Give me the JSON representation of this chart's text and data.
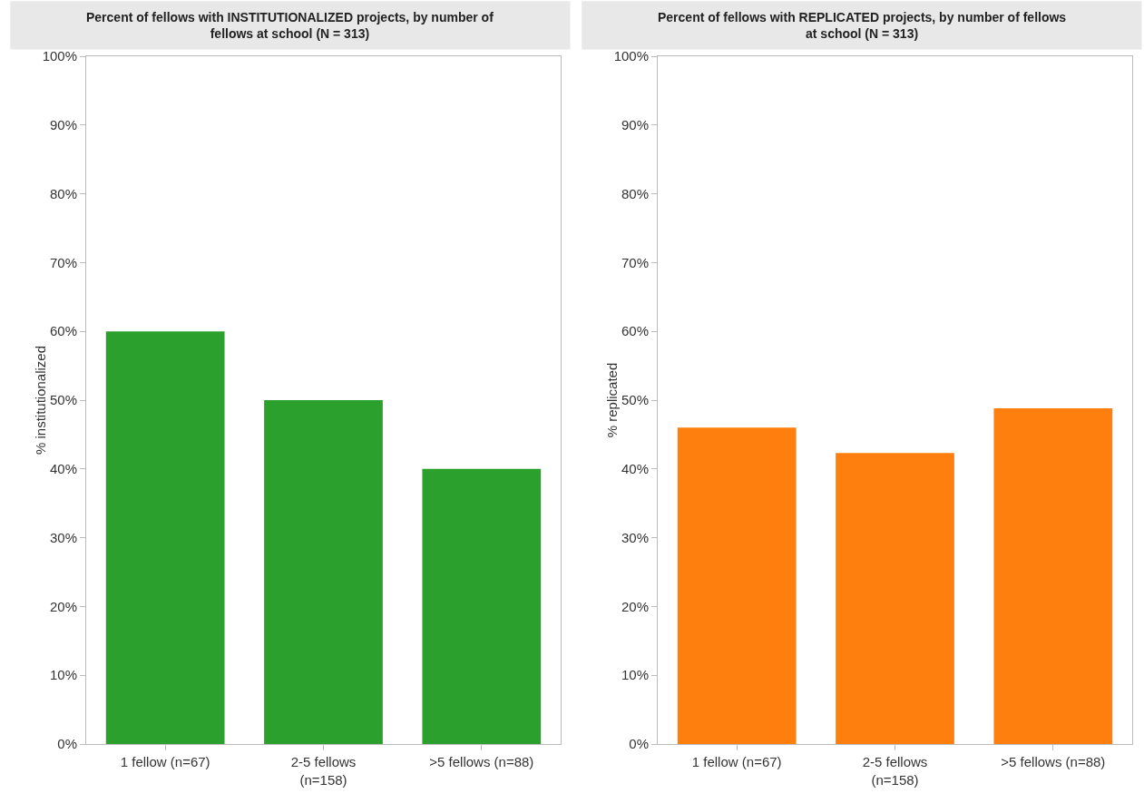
{
  "chart_data": [
    {
      "type": "bar",
      "title": "Percent of fellows with INSTITUTIONALIZED projects, by number of fellows at school (N = 313)",
      "ylabel": "% institutionalized",
      "categories": [
        "1 fellow (n=67)",
        "2-5 fellows (n=158)",
        ">5 fellows (n=88)"
      ],
      "values": [
        60,
        50,
        40
      ],
      "color": "#2ca02c",
      "ylim": [
        0,
        100
      ],
      "yticks": [
        {
          "value": 0,
          "label": "0%"
        },
        {
          "value": 10,
          "label": "10%"
        },
        {
          "value": 20,
          "label": "20%"
        },
        {
          "value": 30,
          "label": "30%"
        },
        {
          "value": 40,
          "label": "40%"
        },
        {
          "value": 50,
          "label": "50%"
        },
        {
          "value": 60,
          "label": "60%"
        },
        {
          "value": 70,
          "label": "70%"
        },
        {
          "value": 80,
          "label": "80%"
        },
        {
          "value": 90,
          "label": "90%"
        },
        {
          "value": 100,
          "label": "100%"
        }
      ],
      "grid": false
    },
    {
      "type": "bar",
      "title": "Percent of fellows with REPLICATED projects, by number of fellows at school (N = 313)",
      "ylabel": "% replicated",
      "categories": [
        "1 fellow (n=67)",
        "2-5 fellows (n=158)",
        ">5 fellows (n=88)"
      ],
      "values": [
        46,
        42.3,
        48.8
      ],
      "color": "#ff7f0e",
      "ylim": [
        0,
        100
      ],
      "yticks": [
        {
          "value": 0,
          "label": "0%"
        },
        {
          "value": 10,
          "label": "10%"
        },
        {
          "value": 20,
          "label": "20%"
        },
        {
          "value": 30,
          "label": "30%"
        },
        {
          "value": 40,
          "label": "40%"
        },
        {
          "value": 50,
          "label": "50%"
        },
        {
          "value": 60,
          "label": "60%"
        },
        {
          "value": 70,
          "label": "70%"
        },
        {
          "value": 80,
          "label": "80%"
        },
        {
          "value": 90,
          "label": "90%"
        },
        {
          "value": 100,
          "label": "100%"
        }
      ],
      "grid": false
    }
  ]
}
